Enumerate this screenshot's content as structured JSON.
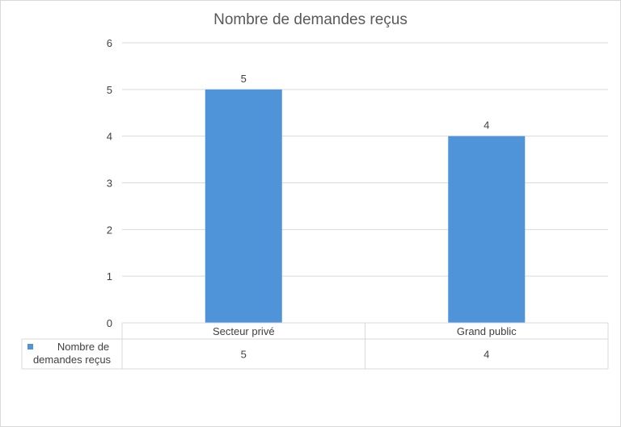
{
  "chart_data": {
    "type": "bar",
    "title": "Nombre de demandes reçus",
    "categories": [
      "Secteur privé",
      "Grand public"
    ],
    "series": [
      {
        "name": "Nombre de demandes reçus",
        "values": [
          5,
          4
        ],
        "color": "#4f94d9"
      }
    ],
    "ylim": [
      0,
      6
    ],
    "yticks": [
      0,
      1,
      2,
      3,
      4,
      5,
      6
    ],
    "grid": true,
    "data_table": true,
    "legend": "data-table-left"
  }
}
